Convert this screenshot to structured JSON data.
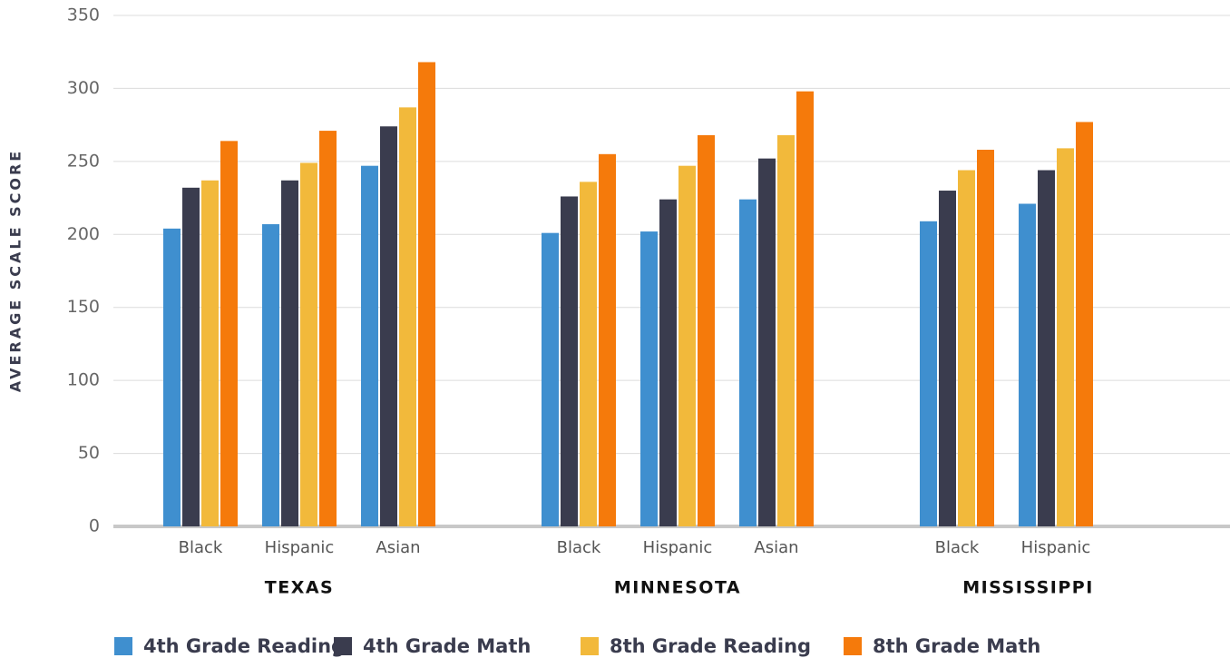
{
  "chart_data": {
    "type": "bar",
    "ylabel": "AVERAGE SCALE SCORE",
    "groups": [
      {
        "name": "TEXAS",
        "categories": [
          "Black",
          "Hispanic",
          "Asian"
        ]
      },
      {
        "name": "MINNESOTA",
        "categories": [
          "Black",
          "Hispanic",
          "Asian"
        ]
      },
      {
        "name": "MISSISSIPPI",
        "categories": [
          "Black",
          "Hispanic"
        ]
      }
    ],
    "series": [
      {
        "name": "4th Grade Reading",
        "color": "#3f8fcf",
        "values": [
          204,
          207,
          247,
          201,
          202,
          224,
          209,
          221
        ]
      },
      {
        "name": "4th Grade Math",
        "color": "#3a3c4e",
        "values": [
          232,
          237,
          274,
          226,
          224,
          252,
          230,
          244
        ]
      },
      {
        "name": "8th Grade Reading",
        "color": "#f2b93b",
        "values": [
          237,
          249,
          287,
          236,
          247,
          268,
          244,
          259
        ]
      },
      {
        "name": "8th Grade Math",
        "color": "#f57a0b",
        "values": [
          264,
          271,
          318,
          255,
          268,
          298,
          258,
          277
        ]
      }
    ],
    "ylim": [
      0,
      350
    ],
    "yticks": [
      0,
      50,
      100,
      150,
      200,
      250,
      300,
      350
    ],
    "grid": true
  }
}
